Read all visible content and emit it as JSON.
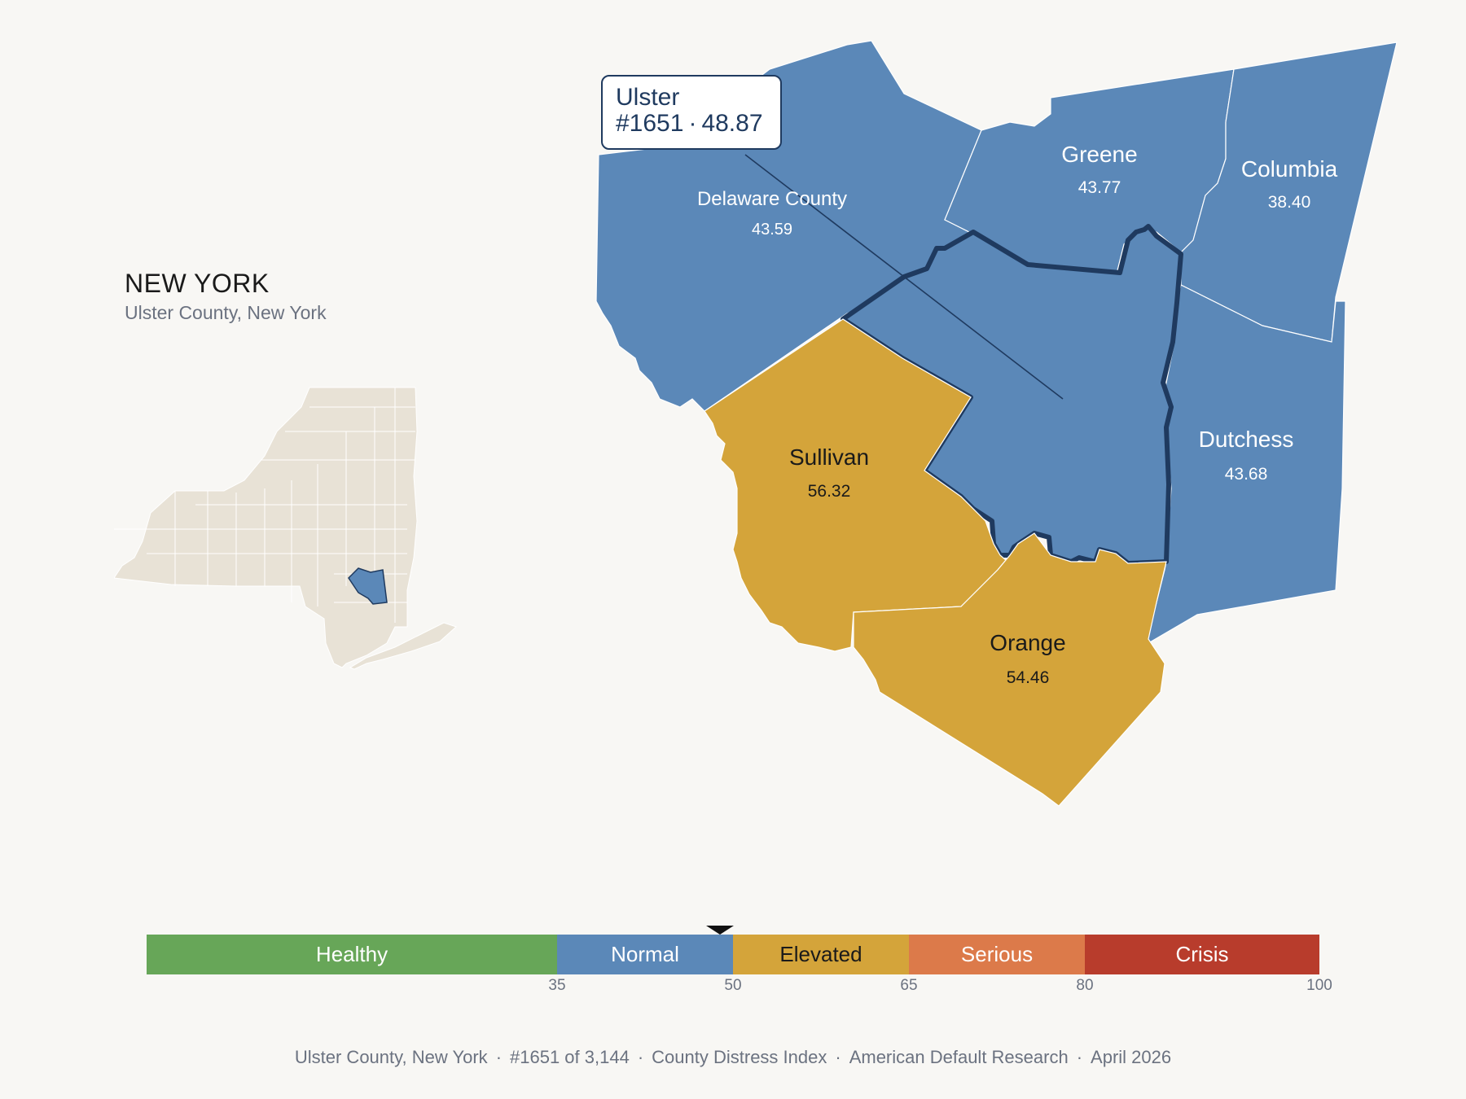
{
  "state": {
    "title": "NEW YORK",
    "subtitle": "Ulster County, New York"
  },
  "callout": {
    "name": "Ulster",
    "rank": "#1651",
    "separator": "·",
    "value": "48.87"
  },
  "counties": [
    {
      "key": "delaware",
      "name": "Delaware County",
      "value": "43.59",
      "category": "Normal"
    },
    {
      "key": "greene",
      "name": "Greene",
      "value": "43.77",
      "category": "Normal"
    },
    {
      "key": "columbia",
      "name": "Columbia",
      "value": "38.40",
      "category": "Normal"
    },
    {
      "key": "dutchess",
      "name": "Dutchess",
      "value": "43.68",
      "category": "Normal"
    },
    {
      "key": "sullivan",
      "name": "Sullivan",
      "value": "56.32",
      "category": "Elevated"
    },
    {
      "key": "orange",
      "name": "Orange",
      "value": "54.46",
      "category": "Elevated"
    },
    {
      "key": "ulster",
      "name": "Ulster",
      "value": "48.87",
      "category": "Normal",
      "highlighted": true
    }
  ],
  "legend": {
    "min": 0,
    "max": 100,
    "marker_value": 48.87,
    "segments": [
      {
        "label": "Healthy",
        "from": 0,
        "to": 35,
        "color": "#67a658"
      },
      {
        "label": "Normal",
        "from": 35,
        "to": 50,
        "color": "#5b88b8"
      },
      {
        "label": "Elevated",
        "from": 50,
        "to": 65,
        "color": "#d4a43a"
      },
      {
        "label": "Serious",
        "from": 65,
        "to": 80,
        "color": "#dc7a4a"
      },
      {
        "label": "Crisis",
        "from": 80,
        "to": 100,
        "color": "#b83c2c"
      }
    ],
    "ticks": [
      "35",
      "50",
      "65",
      "80",
      "100"
    ]
  },
  "colors": {
    "normal": "#5b88b8",
    "elevated": "#d4a43a",
    "outline": "#1f3a5f",
    "inset_land": "#e8e2d6",
    "background": "#f8f7f4"
  },
  "footer": {
    "county": "Ulster County, New York",
    "rank": "#1651 of 3,144",
    "index": "County Distress Index",
    "source": "American Default Research",
    "date": "April 2026",
    "separator": "·"
  }
}
